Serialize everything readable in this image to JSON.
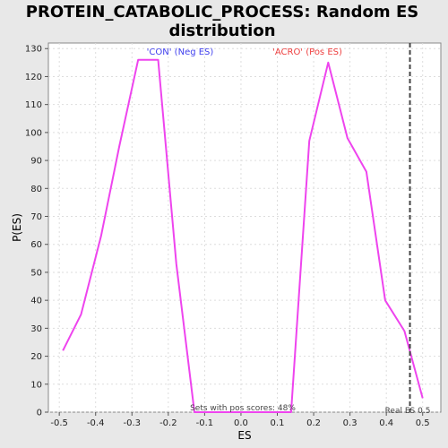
{
  "chart_data": {
    "type": "line",
    "title_lines": [
      "PROTEIN_CATABOLIC_PROCESS: Random ES",
      "distribution"
    ],
    "xlabel": "ES",
    "ylabel": "P(ES)",
    "xlim": [
      -0.53,
      0.55
    ],
    "ylim": [
      0,
      132
    ],
    "xticks": [
      -0.5,
      -0.4,
      -0.3,
      -0.2,
      -0.1,
      0.0,
      0.1,
      0.2,
      0.3,
      0.4,
      0.5
    ],
    "xtick_labels": [
      "-0.5",
      "-0.4",
      "-0.3",
      "-0.2",
      "-0.1",
      "0.0",
      "0.1",
      "0.2",
      "0.3",
      "0.4",
      "0.5"
    ],
    "yticks": [
      0,
      10,
      20,
      30,
      40,
      50,
      60,
      70,
      80,
      90,
      100,
      110,
      120,
      130
    ],
    "ytick_labels": [
      "0",
      "10",
      "20",
      "30",
      "40",
      "50",
      "60",
      "70",
      "80",
      "90",
      "100",
      "110",
      "120",
      "130"
    ],
    "grid": true,
    "series": [
      {
        "color": "#ee44ee",
        "x": [
          -0.49,
          -0.44,
          -0.385,
          -0.335,
          -0.283,
          -0.228,
          -0.178,
          -0.128,
          -0.08,
          0.0,
          0.05,
          0.138,
          0.188,
          0.24,
          0.293,
          0.345,
          0.397,
          0.45,
          0.5
        ],
        "y": [
          22,
          35,
          63,
          95,
          126,
          126,
          53,
          0,
          0,
          0,
          0,
          0,
          97,
          125,
          98,
          86,
          40,
          29,
          5
        ]
      }
    ],
    "vline": {
      "x": 0.465,
      "color": "#444444"
    },
    "annotations": {
      "neg_label": "'CON' (Neg ES)",
      "neg_color": "#4040ee",
      "pos_label": "'ACRO' (Pos ES)",
      "pos_color": "#ee4040",
      "sets_text": "Sets with pos scores: 48%",
      "real_es_text": "Real ES 0.5"
    }
  }
}
